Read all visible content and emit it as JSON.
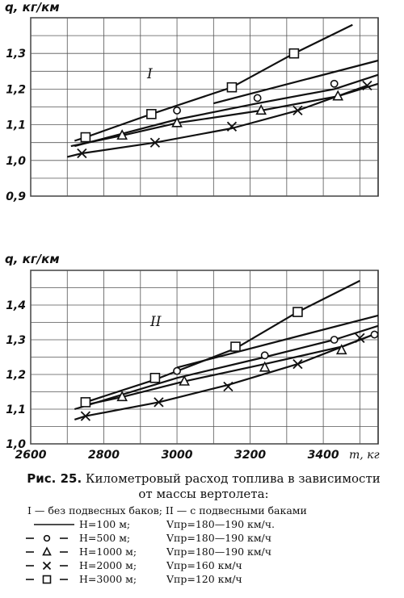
{
  "figure": {
    "caption_label": "Рис. 25.",
    "caption_text_1": "Километровый расход топлива в зависимости",
    "caption_text_2": "от массы вертолета:",
    "legend_header": "I — без подвесных баков;  II — с подвесными баками",
    "legend_rows": [
      {
        "marker": "none",
        "h": "H=100 м;",
        "v": "Vпр=180—190 км/ч."
      },
      {
        "marker": "circle",
        "h": "H=500 м;",
        "v": "Vпр=180—190 км/ч"
      },
      {
        "marker": "triangle",
        "h": "H=1000 м;",
        "v": "Vпр=180—190 км/ч"
      },
      {
        "marker": "cross",
        "h": "H=2000 м;",
        "v": "Vпр=160 км/ч"
      },
      {
        "marker": "square",
        "h": "H=3000 м;",
        "v": "Vпр=120 км/ч"
      }
    ]
  },
  "chart_data": [
    {
      "type": "line",
      "panel_label": "I",
      "ylabel": "q, кг/км",
      "xlabel": "",
      "xlim": [
        2600,
        3550
      ],
      "ylim": [
        0.9,
        1.4
      ],
      "y_ticks": [
        "0,9",
        "1,0",
        "1,1",
        "1,2",
        "1,3"
      ],
      "y_tick_values": [
        0.9,
        1.0,
        1.1,
        1.2,
        1.3
      ],
      "grid": true,
      "series": [
        {
          "marker": "none",
          "x": [
            3100,
            3550
          ],
          "y": [
            1.16,
            1.28
          ]
        },
        {
          "marker": "circle",
          "x": [
            2720,
            3000,
            3220,
            3430,
            3550
          ],
          "y": [
            1.04,
            1.115,
            1.16,
            1.2,
            1.24
          ]
        },
        {
          "marker": "triangle",
          "x": [
            2710,
            2850,
            3000,
            3230,
            3440,
            3550
          ],
          "y": [
            1.04,
            1.07,
            1.105,
            1.14,
            1.18,
            1.215
          ]
        },
        {
          "marker": "cross",
          "x": [
            2700,
            2740,
            2940,
            3150,
            3330,
            3520
          ],
          "y": [
            1.01,
            1.02,
            1.05,
            1.09,
            1.14,
            1.21
          ]
        },
        {
          "marker": "square",
          "x": [
            2720,
            2750,
            2930,
            3150,
            3320,
            3480
          ],
          "y": [
            1.055,
            1.065,
            1.13,
            1.205,
            1.3,
            1.38
          ]
        }
      ],
      "points": [
        {
          "marker": "square",
          "x": 2750,
          "y": 1.065
        },
        {
          "marker": "square",
          "x": 2930,
          "y": 1.13
        },
        {
          "marker": "square",
          "x": 3150,
          "y": 1.205
        },
        {
          "marker": "square",
          "x": 3320,
          "y": 1.3
        },
        {
          "marker": "circle",
          "x": 3000,
          "y": 1.14
        },
        {
          "marker": "circle",
          "x": 3220,
          "y": 1.175
        },
        {
          "marker": "circle",
          "x": 3430,
          "y": 1.215
        },
        {
          "marker": "triangle",
          "x": 2850,
          "y": 1.07
        },
        {
          "marker": "triangle",
          "x": 3000,
          "y": 1.105
        },
        {
          "marker": "triangle",
          "x": 3230,
          "y": 1.14
        },
        {
          "marker": "triangle",
          "x": 3440,
          "y": 1.18
        },
        {
          "marker": "cross",
          "x": 2740,
          "y": 1.02
        },
        {
          "marker": "cross",
          "x": 2940,
          "y": 1.05
        },
        {
          "marker": "cross",
          "x": 3150,
          "y": 1.095
        },
        {
          "marker": "cross",
          "x": 3330,
          "y": 1.14
        },
        {
          "marker": "cross",
          "x": 3520,
          "y": 1.21
        }
      ]
    },
    {
      "type": "line",
      "panel_label": "II",
      "ylabel": "q, кг/км",
      "xlabel": "m, кг",
      "xlim": [
        2600,
        3550
      ],
      "ylim": [
        1.0,
        1.5
      ],
      "x_ticks": [
        "2600",
        "2800",
        "3000",
        "3200",
        "3400"
      ],
      "x_tick_values": [
        2600,
        2800,
        3000,
        3200,
        3400
      ],
      "y_ticks": [
        "1,0",
        "1,1",
        "1,2",
        "1,3",
        "1,4"
      ],
      "y_tick_values": [
        1.0,
        1.1,
        1.2,
        1.3,
        1.4
      ],
      "grid": true,
      "series": [
        {
          "marker": "none",
          "x": [
            3000,
            3550
          ],
          "y": [
            1.22,
            1.37
          ]
        },
        {
          "marker": "circle",
          "x": [
            2720,
            3000,
            3240,
            3430,
            3550
          ],
          "y": [
            1.1,
            1.19,
            1.25,
            1.3,
            1.34
          ]
        },
        {
          "marker": "triangle",
          "x": [
            2740,
            2850,
            3020,
            3240,
            3450,
            3550
          ],
          "y": [
            1.11,
            1.135,
            1.18,
            1.23,
            1.28,
            1.32
          ]
        },
        {
          "marker": "cross",
          "x": [
            2720,
            2750,
            2950,
            3140,
            3330,
            3550
          ],
          "y": [
            1.07,
            1.08,
            1.12,
            1.17,
            1.23,
            1.32
          ]
        },
        {
          "marker": "square",
          "x": [
            2740,
            2750,
            2940,
            3160,
            3330,
            3500
          ],
          "y": [
            1.11,
            1.12,
            1.185,
            1.275,
            1.38,
            1.47
          ]
        }
      ],
      "points": [
        {
          "marker": "square",
          "x": 2750,
          "y": 1.12
        },
        {
          "marker": "square",
          "x": 2940,
          "y": 1.19
        },
        {
          "marker": "square",
          "x": 3160,
          "y": 1.28
        },
        {
          "marker": "square",
          "x": 3330,
          "y": 1.38
        },
        {
          "marker": "circle",
          "x": 3000,
          "y": 1.21
        },
        {
          "marker": "circle",
          "x": 3240,
          "y": 1.255
        },
        {
          "marker": "circle",
          "x": 3430,
          "y": 1.3
        },
        {
          "marker": "circle",
          "x": 3540,
          "y": 1.315
        },
        {
          "marker": "triangle",
          "x": 2850,
          "y": 1.135
        },
        {
          "marker": "triangle",
          "x": 3020,
          "y": 1.18
        },
        {
          "marker": "triangle",
          "x": 3240,
          "y": 1.22
        },
        {
          "marker": "triangle",
          "x": 3450,
          "y": 1.27
        },
        {
          "marker": "cross",
          "x": 2750,
          "y": 1.08
        },
        {
          "marker": "cross",
          "x": 2950,
          "y": 1.12
        },
        {
          "marker": "cross",
          "x": 3140,
          "y": 1.165
        },
        {
          "marker": "cross",
          "x": 3330,
          "y": 1.23
        },
        {
          "marker": "cross",
          "x": 3500,
          "y": 1.305
        }
      ]
    }
  ]
}
